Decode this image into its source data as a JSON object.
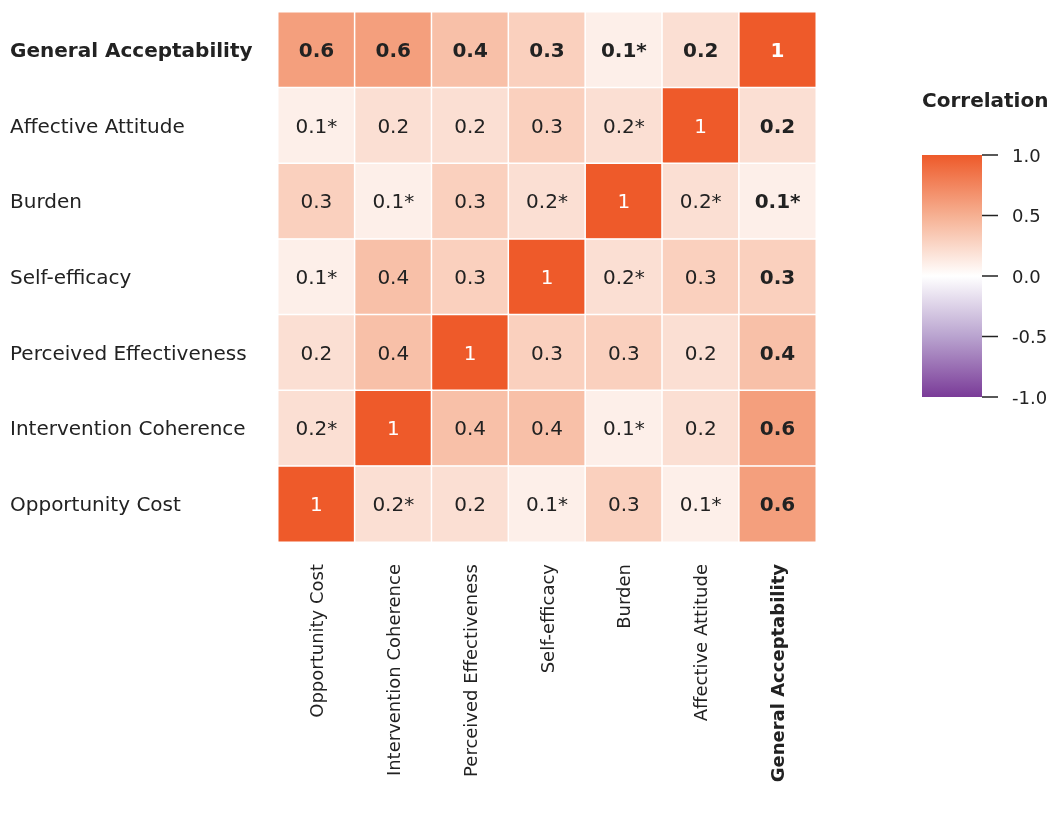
{
  "chart_data": {
    "type": "heatmap",
    "clabel": "Correlation",
    "categories": [
      "Opportunity Cost",
      "Intervention Coherence",
      "Perceived Effectiveness",
      "Self-efficacy",
      "Burden",
      "Affective Attitude",
      "General Acceptability"
    ],
    "y_categories": [
      "General Acceptability",
      "Affective Attitude",
      "Burden",
      "Self-efficacy",
      "Perceived Effectiveness",
      "Intervention Coherence",
      "Opportunity Cost"
    ],
    "cells": [
      [
        0.6,
        0.6,
        0.4,
        0.3,
        0.1,
        0.2,
        1
      ],
      [
        0.1,
        0.2,
        0.2,
        0.3,
        0.2,
        1,
        0.2
      ],
      [
        0.3,
        0.1,
        0.3,
        0.2,
        1,
        0.2,
        0.1
      ],
      [
        0.1,
        0.4,
        0.3,
        1,
        0.2,
        0.3,
        0.3
      ],
      [
        0.2,
        0.4,
        1,
        0.3,
        0.3,
        0.2,
        0.4
      ],
      [
        0.2,
        1,
        0.4,
        0.4,
        0.1,
        0.2,
        0.6
      ],
      [
        1,
        0.2,
        0.2,
        0.1,
        0.3,
        0.1,
        0.6
      ]
    ],
    "cell_labels": [
      [
        "0.6",
        "0.6",
        "0.4",
        "0.3",
        "0.1*",
        "0.2",
        "1"
      ],
      [
        "0.1*",
        "0.2",
        "0.2",
        "0.3",
        "0.2*",
        "1",
        "0.2"
      ],
      [
        "0.3",
        "0.1*",
        "0.3",
        "0.2*",
        "1",
        "0.2*",
        "0.1*"
      ],
      [
        "0.1*",
        "0.4",
        "0.3",
        "1",
        "0.2*",
        "0.3",
        "0.3"
      ],
      [
        "0.2",
        "0.4",
        "1",
        "0.3",
        "0.3",
        "0.2",
        "0.4"
      ],
      [
        "0.2*",
        "1",
        "0.4",
        "0.4",
        "0.1*",
        "0.2",
        "0.6"
      ],
      [
        "1",
        "0.2*",
        "0.2",
        "0.1*",
        "0.3",
        "0.1*",
        "0.6"
      ]
    ],
    "clim": [
      -1,
      1
    ],
    "cticks": [
      {
        "value": 1,
        "label": "1.0"
      },
      {
        "value": 0.5,
        "label": "0.5"
      },
      {
        "value": 0,
        "label": "0.0"
      },
      {
        "value": -0.5,
        "label": "-0.5"
      },
      {
        "value": -1,
        "label": "-1.0"
      }
    ]
  }
}
